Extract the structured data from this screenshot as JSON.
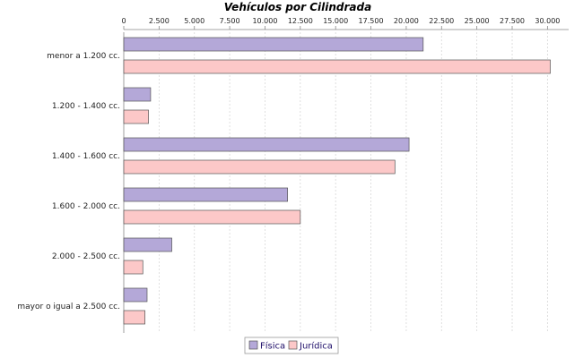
{
  "chart_data": {
    "type": "bar",
    "orientation": "horizontal",
    "title": "Vehículos por Cilindrada",
    "categories": [
      "menor a 1.200 cc.",
      "1.200 - 1.400 cc.",
      "1.400 - 1.600 cc.",
      "1.600 - 2.000 cc.",
      "2.000 - 2.500 cc.",
      "mayor o igual a 2.500 cc."
    ],
    "series": [
      {
        "name": "Física",
        "color": "#b4a8d8",
        "values": [
          21200,
          1900,
          20200,
          11600,
          3400,
          1650
        ]
      },
      {
        "name": "Jurídica",
        "color": "#fcc8c8",
        "values": [
          30200,
          1750,
          19200,
          12500,
          1350,
          1500
        ]
      }
    ],
    "value_axis": {
      "position": "top",
      "range": [
        0,
        31500
      ],
      "ticks": [
        0,
        2500,
        5000,
        7500,
        10000,
        12500,
        15000,
        17500,
        20000,
        22500,
        25000,
        27500,
        30000
      ],
      "tick_labels": [
        "0",
        "2.500",
        "5.000",
        "7.500",
        "10.000",
        "12.500",
        "15.000",
        "17.500",
        "20.000",
        "22.500",
        "25.000",
        "27.500",
        "30.000"
      ]
    },
    "grid": true,
    "legend": "bottom-center"
  }
}
